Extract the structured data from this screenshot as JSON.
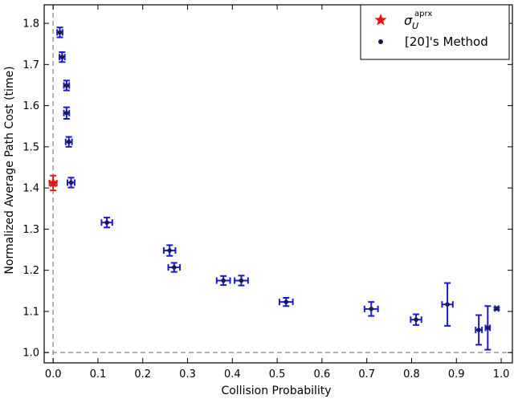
{
  "chart_data": {
    "type": "scatter",
    "xlabel": "Collision Probability",
    "ylabel": "Normalized Average Path Cost (time)",
    "xlim": [
      -0.02,
      1.025
    ],
    "ylim": [
      0.975,
      1.845
    ],
    "xticks": [
      0.0,
      0.1,
      0.2,
      0.3,
      0.4,
      0.5,
      0.6,
      0.7,
      0.8,
      0.9,
      1.0
    ],
    "xtick_labels": [
      "0.0",
      "0.1",
      "0.2",
      "0.3",
      "0.4",
      "0.5",
      "0.6",
      "0.7",
      "0.8",
      "0.9",
      "1.0"
    ],
    "yticks": [
      1.0,
      1.1,
      1.2,
      1.3,
      1.4,
      1.5,
      1.6,
      1.7,
      1.8
    ],
    "ytick_labels": [
      "1.0",
      "1.1",
      "1.2",
      "1.3",
      "1.4",
      "1.5",
      "1.6",
      "1.7",
      "1.8"
    ],
    "reference_lines": {
      "x": 0.0,
      "y": 1.0,
      "style": "dashed",
      "color": "#999999"
    },
    "legend": {
      "position": "top-right",
      "entries": [
        "σ_U^aprx",
        "[20]'s Method"
      ]
    },
    "grid": false,
    "series": [
      {
        "name": "σ_U^aprx",
        "marker": "star",
        "color": "#ee1111",
        "points": [
          {
            "x": 0.0,
            "y": 1.412,
            "xerr": 0.008,
            "yerr": 0.018
          }
        ]
      },
      {
        "name": "[20]'s Method",
        "marker": "circle",
        "color": "#1a1acc",
        "points": [
          {
            "x": 0.015,
            "y": 1.778,
            "xerr": 0.006,
            "yerr": 0.012
          },
          {
            "x": 0.02,
            "y": 1.718,
            "xerr": 0.006,
            "yerr": 0.012
          },
          {
            "x": 0.03,
            "y": 1.649,
            "xerr": 0.006,
            "yerr": 0.012
          },
          {
            "x": 0.03,
            "y": 1.582,
            "xerr": 0.006,
            "yerr": 0.014
          },
          {
            "x": 0.035,
            "y": 1.512,
            "xerr": 0.007,
            "yerr": 0.012
          },
          {
            "x": 0.04,
            "y": 1.413,
            "xerr": 0.008,
            "yerr": 0.012
          },
          {
            "x": 0.12,
            "y": 1.316,
            "xerr": 0.012,
            "yerr": 0.012
          },
          {
            "x": 0.26,
            "y": 1.248,
            "xerr": 0.013,
            "yerr": 0.013
          },
          {
            "x": 0.27,
            "y": 1.207,
            "xerr": 0.013,
            "yerr": 0.011
          },
          {
            "x": 0.38,
            "y": 1.175,
            "xerr": 0.015,
            "yerr": 0.011
          },
          {
            "x": 0.42,
            "y": 1.175,
            "xerr": 0.015,
            "yerr": 0.012
          },
          {
            "x": 0.52,
            "y": 1.123,
            "xerr": 0.015,
            "yerr": 0.01
          },
          {
            "x": 0.71,
            "y": 1.106,
            "xerr": 0.015,
            "yerr": 0.017
          },
          {
            "x": 0.81,
            "y": 1.08,
            "xerr": 0.012,
            "yerr": 0.013
          },
          {
            "x": 0.88,
            "y": 1.117,
            "xerr": 0.012,
            "yerr": 0.052
          },
          {
            "x": 0.95,
            "y": 1.055,
            "xerr": 0.007,
            "yerr": 0.036
          },
          {
            "x": 0.97,
            "y": 1.06,
            "xerr": 0.005,
            "yerr": 0.053
          },
          {
            "x": 0.99,
            "y": 1.107,
            "xerr": 0.004,
            "yerr": 0.003
          }
        ]
      }
    ]
  }
}
